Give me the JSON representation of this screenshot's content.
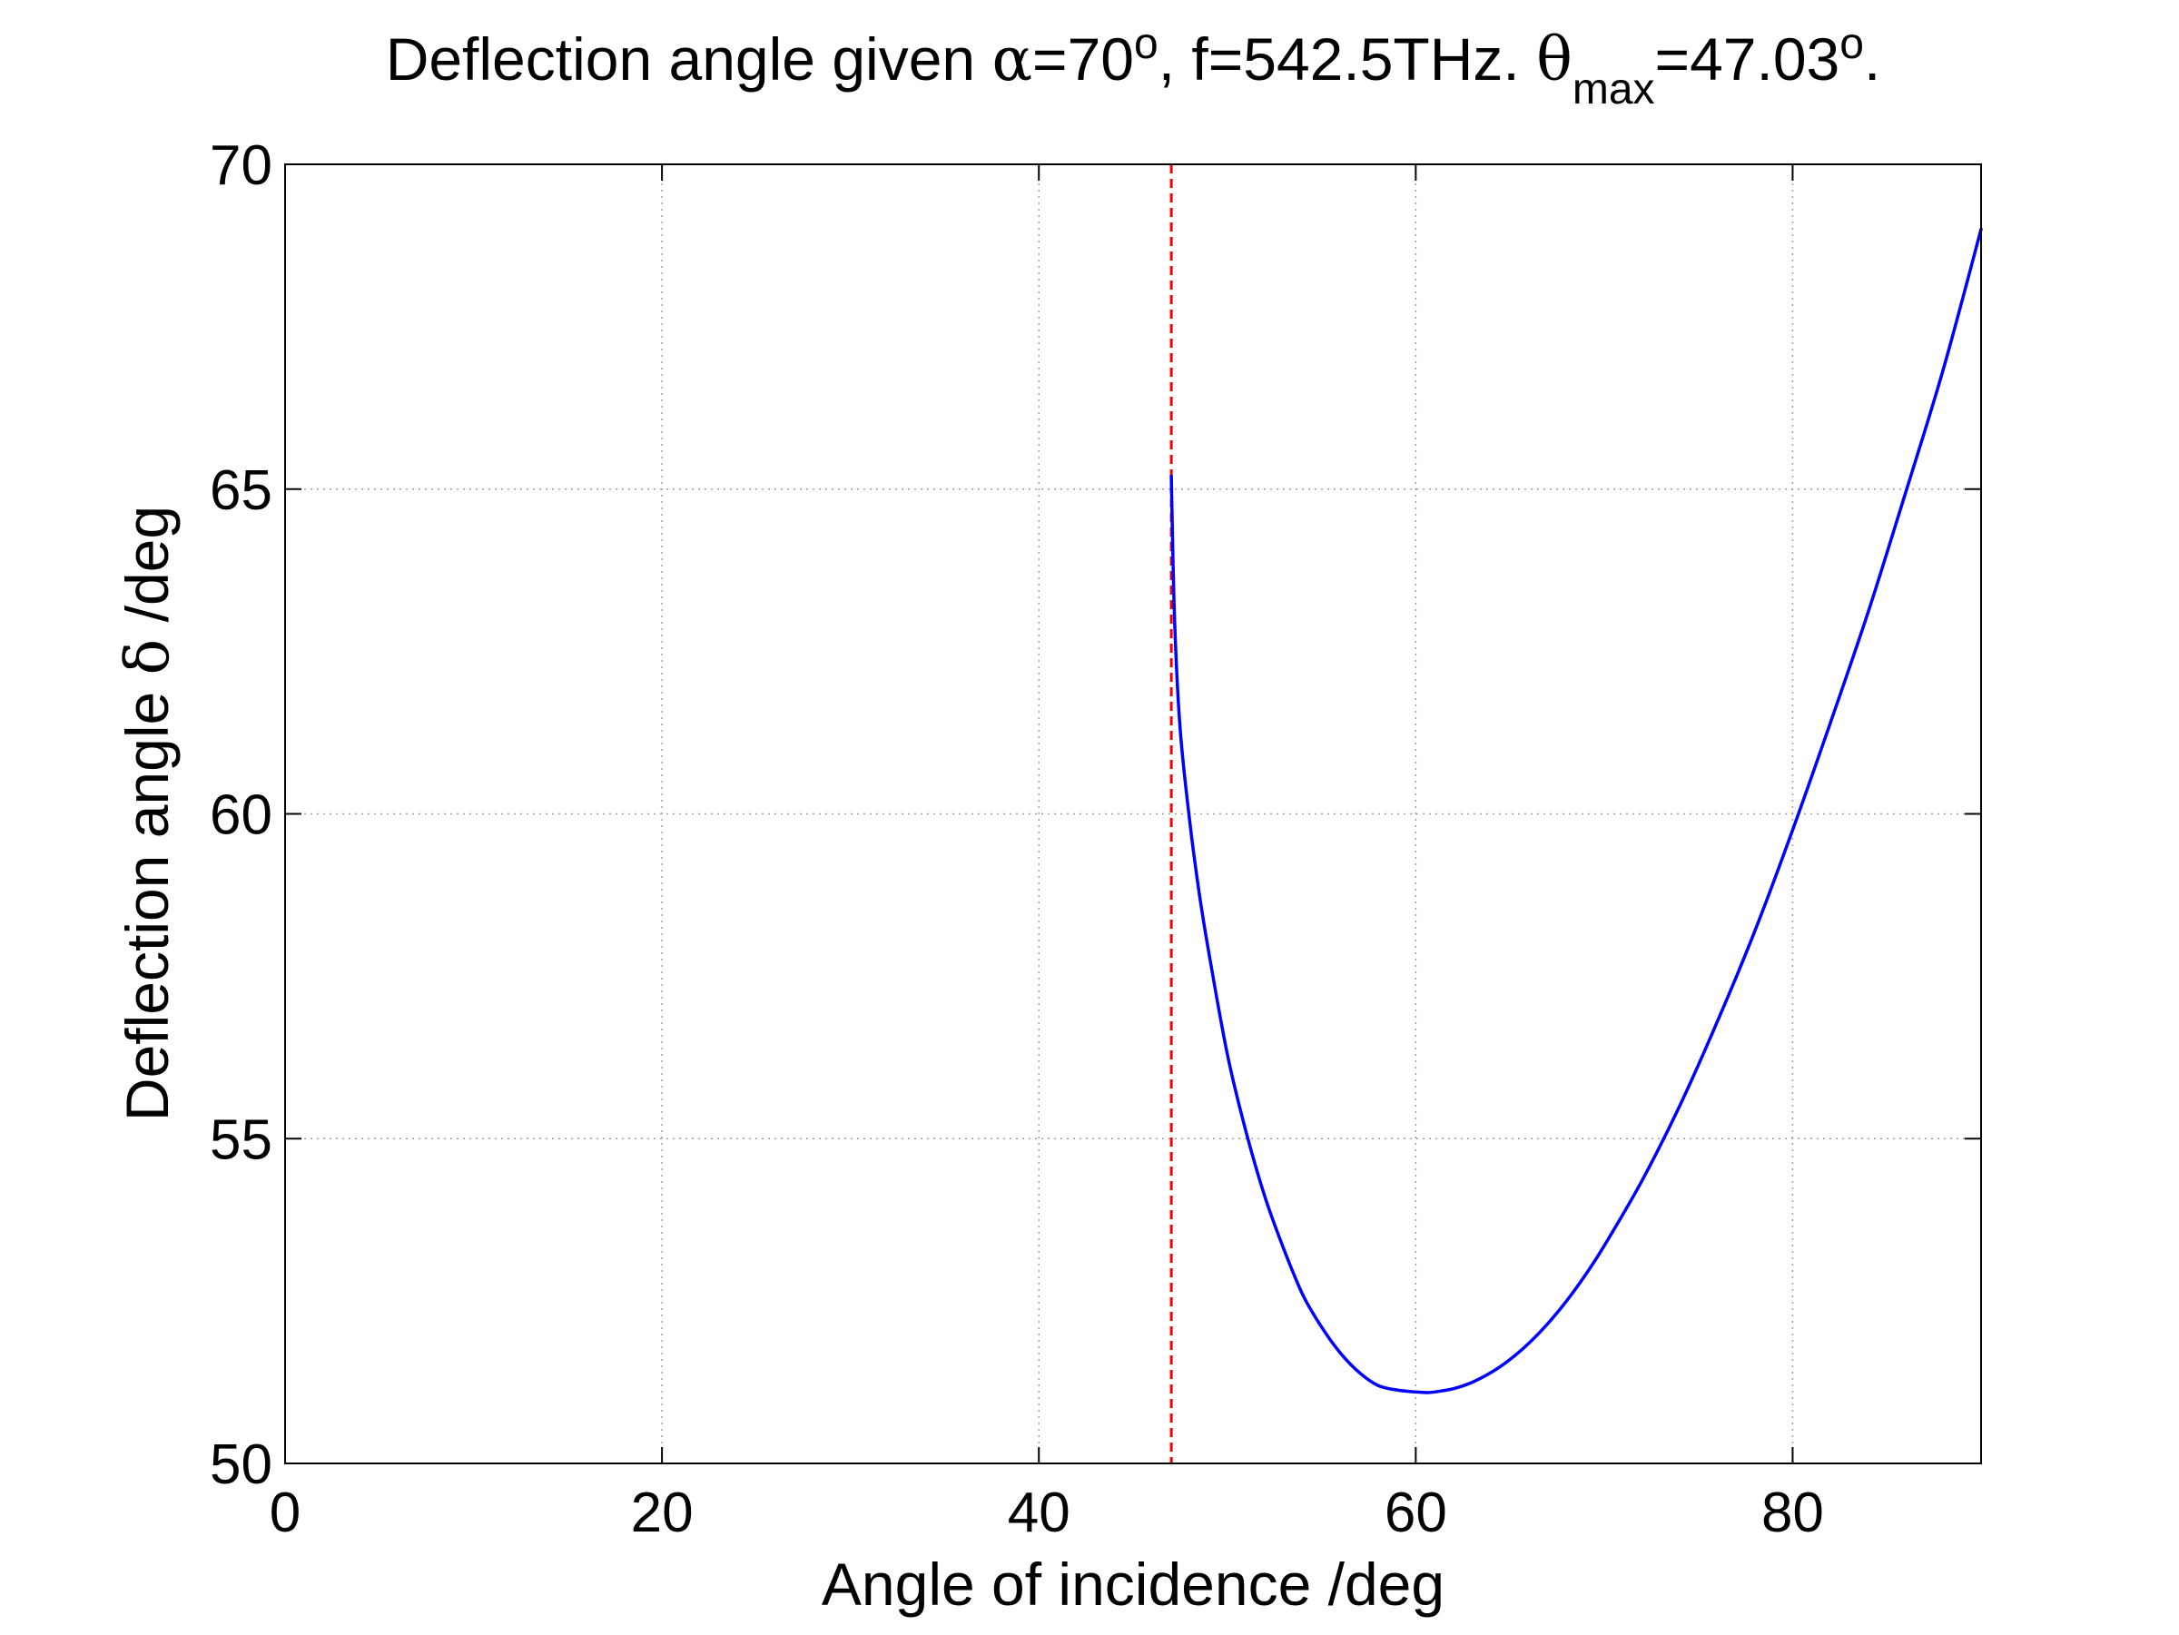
{
  "chart_data": {
    "type": "line",
    "title": {
      "prefix": "Deflection angle given ",
      "alpha_symbol": "α",
      "alpha_value": "=70",
      "degree_mark": "o",
      "middle": ", f=542.5THz. ",
      "theta_symbol": "θ",
      "theta_subscript": "max",
      "theta_value": "=47.03",
      "suffix": "."
    },
    "xlabel": "Angle of incidence /deg",
    "ylabel": {
      "prefix": "Deflection angle ",
      "delta_symbol": "δ",
      "suffix": " /deg"
    },
    "xlim": [
      0,
      90
    ],
    "ylim": [
      50,
      70
    ],
    "xticks": [
      0,
      20,
      40,
      60,
      80
    ],
    "yticks": [
      50,
      55,
      60,
      65,
      70
    ],
    "grid": true,
    "series": [
      {
        "color": "#0000ff",
        "style": "solid",
        "x": [
          47.03,
          47.2,
          47.5,
          48,
          48.5,
          49,
          50,
          51,
          52,
          53,
          54,
          55,
          56,
          57,
          58,
          59,
          60,
          60.6,
          61,
          62,
          63,
          64,
          65,
          66,
          67,
          68,
          69,
          70,
          72,
          74,
          76,
          78,
          80,
          82,
          84,
          86,
          88,
          90
        ],
        "y": [
          65.2,
          63.0,
          61.3,
          59.9,
          58.8,
          57.9,
          56.3,
          55.1,
          54.1,
          53.3,
          52.6,
          52.1,
          51.7,
          51.4,
          51.2,
          51.13,
          51.1,
          51.09,
          51.1,
          51.15,
          51.25,
          51.4,
          51.6,
          51.85,
          52.15,
          52.5,
          52.9,
          53.35,
          54.35,
          55.5,
          56.8,
          58.2,
          59.75,
          61.4,
          63.1,
          64.95,
          66.85,
          69.0
        ]
      }
    ],
    "reference_lines": [
      {
        "x": 47.03,
        "color": "#ff0000",
        "style": "dashed"
      }
    ]
  }
}
